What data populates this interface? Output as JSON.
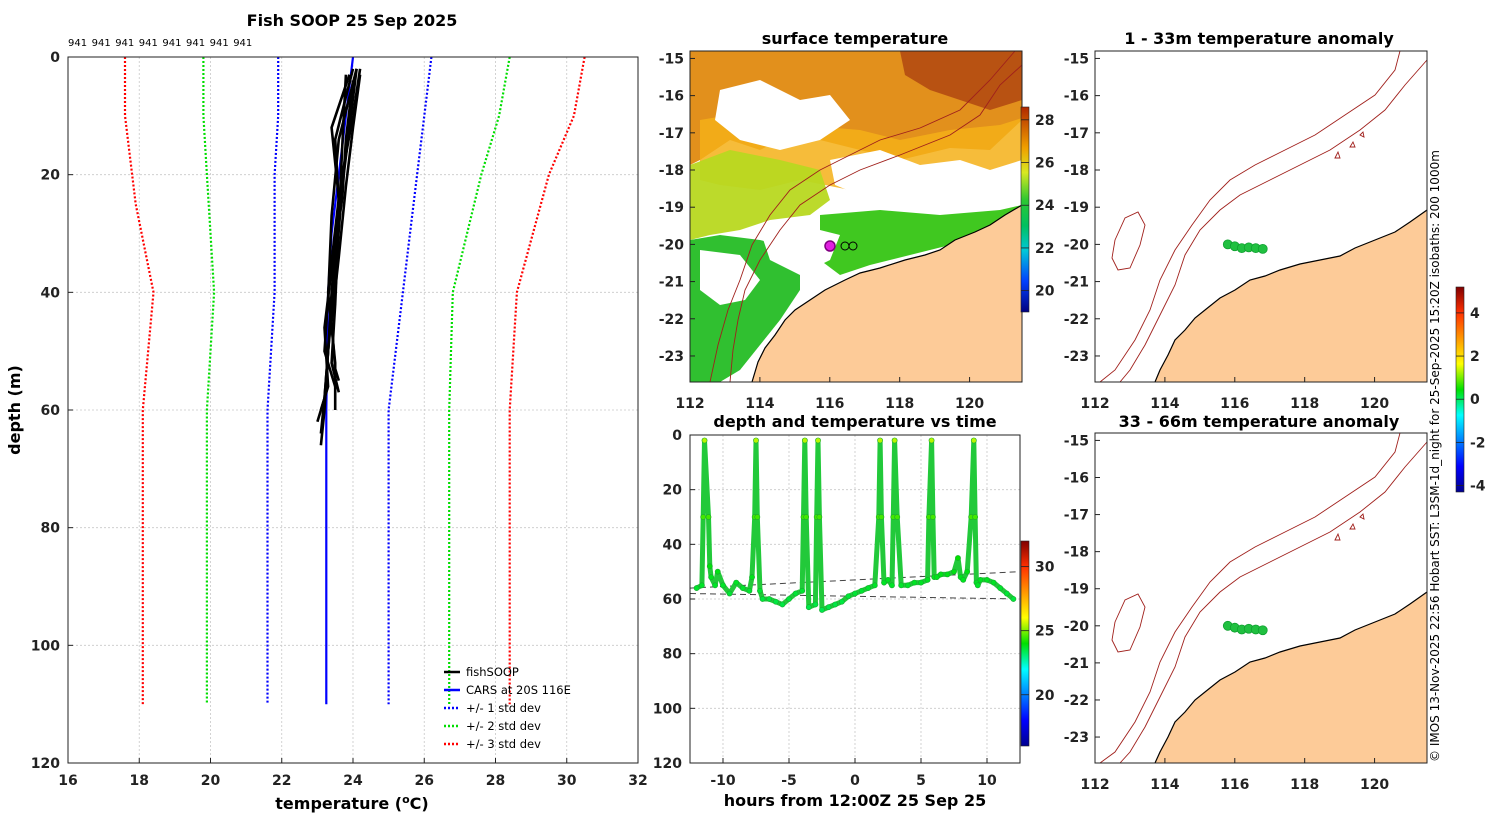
{
  "chart_data": [
    {
      "id": "profile",
      "type": "line",
      "title": "Fish SOOP 25 Sep 2025",
      "station_labels": [
        "941",
        "941",
        "941",
        "941",
        "941",
        "941",
        "941",
        "941"
      ],
      "xlabel": "temperature (",
      "xlabel_sup": "o",
      "xlabel_end": "C)",
      "ylabel": "depth (m)",
      "xlim": [
        16,
        32
      ],
      "ylim": [
        0,
        120
      ],
      "y_inverted": true,
      "xticks": [
        16,
        18,
        20,
        22,
        24,
        26,
        28,
        30,
        32
      ],
      "yticks": [
        0,
        20,
        40,
        60,
        80,
        100,
        120
      ],
      "legend_position": "bottom-right",
      "series": [
        {
          "name": "fishSOOP",
          "color": "#000000",
          "style": "solid",
          "profiles": [
            {
              "x": [
                24.2,
                24.0,
                23.7,
                23.5,
                23.3,
                23.2,
                23.1
              ],
              "y": [
                2,
                10,
                20,
                35,
                50,
                60,
                66
              ]
            },
            {
              "x": [
                24.1,
                23.9,
                23.7,
                23.5,
                23.3,
                23.2,
                23.1
              ],
              "y": [
                2,
                12,
                22,
                37,
                50,
                58,
                64
              ]
            },
            {
              "x": [
                24.0,
                23.5,
                23.6,
                23.4,
                23.3,
                23.2,
                23.0
              ],
              "y": [
                2,
                14,
                25,
                40,
                50,
                58,
                62
              ]
            },
            {
              "x": [
                23.9,
                23.4,
                23.6,
                23.3,
                23.5,
                23.5
              ],
              "y": [
                3,
                12,
                24,
                40,
                52,
                60
              ]
            },
            {
              "x": [
                23.8,
                23.7,
                23.6,
                23.5,
                23.4,
                23.6
              ],
              "y": [
                3,
                15,
                28,
                42,
                52,
                57
              ]
            },
            {
              "x": [
                24.0,
                23.8,
                23.7,
                23.4,
                23.2,
                23.3,
                23.1
              ],
              "y": [
                4,
                14,
                24,
                36,
                46,
                56,
                60
              ]
            },
            {
              "x": [
                24.1,
                23.6,
                23.4,
                23.3,
                23.2,
                23.4,
                23.5
              ],
              "y": [
                2,
                14,
                27,
                41,
                50,
                54,
                56
              ]
            },
            {
              "x": [
                24.2,
                24.0,
                23.8,
                23.6,
                23.4,
                23.5,
                23.6
              ],
              "y": [
                3,
                12,
                22,
                34,
                45,
                53,
                55
              ]
            }
          ]
        },
        {
          "name": "CARS at 20S 116E",
          "color": "#0000ff",
          "style": "solid",
          "x": [
            24.0,
            23.8,
            23.6,
            23.4,
            23.3,
            23.25,
            23.25,
            23.25
          ],
          "y": [
            0,
            10,
            20,
            30,
            40,
            60,
            80,
            110
          ]
        },
        {
          "name": "+/- 1 std dev",
          "color": "#0000ff",
          "style": "dotted",
          "lower": {
            "x": [
              21.9,
              21.9,
              21.8,
              21.8,
              21.6,
              21.6,
              21.6
            ],
            "y": [
              0,
              10,
              20,
              40,
              60,
              80,
              110
            ]
          },
          "upper": {
            "x": [
              26.2,
              26.0,
              25.8,
              25.4,
              25.0,
              25.0,
              25.0
            ],
            "y": [
              0,
              10,
              20,
              40,
              60,
              80,
              110
            ]
          }
        },
        {
          "name": "+/- 2 std dev",
          "color": "#00dd00",
          "style": "dotted",
          "lower": {
            "x": [
              19.8,
              19.8,
              19.9,
              20.1,
              19.9,
              19.9,
              19.9
            ],
            "y": [
              0,
              10,
              20,
              40,
              60,
              80,
              110
            ]
          },
          "upper": {
            "x": [
              28.4,
              28.1,
              27.6,
              26.8,
              26.7,
              26.7,
              26.7
            ],
            "y": [
              0,
              10,
              20,
              40,
              60,
              80,
              110
            ]
          }
        },
        {
          "name": "+/- 3 std dev",
          "color": "#ff0000",
          "style": "dotted",
          "lower": {
            "x": [
              17.6,
              17.6,
              17.9,
              18.4,
              18.1,
              18.1,
              18.1
            ],
            "y": [
              0,
              10,
              25,
              40,
              60,
              80,
              110
            ]
          },
          "upper": {
            "x": [
              30.5,
              30.2,
              29.5,
              28.6,
              28.4,
              28.4,
              28.4
            ],
            "y": [
              0,
              10,
              20,
              40,
              60,
              80,
              110
            ]
          }
        }
      ]
    },
    {
      "id": "sst_map",
      "type": "heatmap",
      "title": "surface temperature",
      "xlim": [
        112,
        121.5
      ],
      "ylim": [
        -23.7,
        -14.8
      ],
      "xticks": [
        112,
        114,
        116,
        118,
        120
      ],
      "yticks": [
        -15,
        -16,
        -17,
        -18,
        -19,
        -20,
        -21,
        -22,
        -23
      ],
      "colorbar": {
        "min": 19,
        "max": 28.6,
        "ticks": [
          20,
          22,
          24,
          26,
          28
        ]
      },
      "cloud_masked": true,
      "vessel_position": {
        "lon": 116.1,
        "lat": -20.05
      }
    },
    {
      "id": "depth_time",
      "type": "scatter",
      "title": "depth and temperature vs time",
      "xlabel": "hours from 12:00Z 25 Sep 25",
      "xlim": [
        -12.5,
        12.5
      ],
      "ylim": [
        0,
        120
      ],
      "y_inverted": true,
      "xticks": [
        -10,
        -5,
        0,
        5,
        10
      ],
      "yticks": [
        0,
        20,
        40,
        60,
        80,
        100,
        120
      ],
      "colorbar": {
        "min": 16,
        "max": 32,
        "ticks": [
          20,
          25,
          30
        ]
      },
      "points": {
        "x": [
          -12,
          -11.6,
          -11.5,
          -11.4,
          -11.1,
          -11.0,
          -10.9,
          -10.6,
          -10.4,
          -10.0,
          -9.5,
          -9.0,
          -8.5,
          -8.0,
          -7.8,
          -7.6,
          -7.5,
          -7.4,
          -7.2,
          -7.0,
          -6.5,
          -6.0,
          -5.5,
          -5.0,
          -4.5,
          -4.0,
          -3.9,
          -3.8,
          -3.7,
          -3.5,
          -3.0,
          -2.9,
          -2.8,
          -2.7,
          -2.5,
          -2.0,
          -1.5,
          -1.0,
          -0.5,
          0.0,
          0.5,
          1.0,
          1.5,
          1.8,
          1.9,
          2.0,
          2.2,
          2.5,
          2.8,
          2.9,
          3.0,
          3.2,
          3.5,
          4.0,
          4.5,
          5.0,
          5.5,
          5.6,
          5.8,
          5.9,
          6.0,
          6.2,
          6.5,
          7.0,
          7.5,
          7.8,
          8.0,
          8.2,
          8.5,
          8.8,
          9.0,
          9.1,
          9.2,
          9.3,
          9.5,
          10.0,
          10.5,
          11.0,
          11.5,
          12.0
        ],
        "y": [
          56,
          55,
          30,
          2,
          30,
          48,
          52,
          55,
          50,
          55,
          58,
          54,
          56,
          57,
          52,
          30,
          2,
          30,
          57,
          60,
          60,
          61,
          62,
          60,
          58,
          57,
          30,
          2,
          30,
          63,
          62,
          30,
          2,
          30,
          64,
          63,
          62,
          61,
          59,
          58,
          57,
          56,
          55,
          30,
          2,
          30,
          54,
          53,
          55,
          30,
          2,
          30,
          55,
          55,
          54,
          54,
          53,
          30,
          2,
          30,
          52,
          52,
          51,
          51,
          50,
          45,
          52,
          53,
          50,
          30,
          2,
          30,
          54,
          55,
          53,
          53,
          54,
          56,
          58,
          60
        ],
        "climatology_lines": [
          {
            "x": [
              -12.5,
              12.5
            ],
            "y": [
              56,
              50
            ]
          },
          {
            "x": [
              -12.5,
              12.5
            ],
            "y": [
              58,
              60
            ]
          }
        ]
      }
    },
    {
      "id": "anom_map_1",
      "type": "heatmap",
      "title": "1 - 33m temperature anomaly",
      "xlim": [
        112,
        121.5
      ],
      "ylim": [
        -23.7,
        -14.8
      ],
      "xticks": [
        112,
        114,
        116,
        118,
        120
      ],
      "yticks": [
        -15,
        -16,
        -17,
        -18,
        -19,
        -20,
        -21,
        -22,
        -23
      ],
      "track": {
        "lon": [
          115.8,
          116.0,
          116.2,
          116.4,
          116.6,
          116.8
        ],
        "lat": [
          -20.0,
          -20.05,
          -20.1,
          -20.08,
          -20.1,
          -20.12
        ]
      }
    },
    {
      "id": "anom_map_2",
      "type": "heatmap",
      "title": "33 - 66m temperature anomaly",
      "xlim": [
        112,
        121.5
      ],
      "ylim": [
        -23.7,
        -14.8
      ],
      "xticks": [
        112,
        114,
        116,
        118,
        120
      ],
      "yticks": [
        -15,
        -16,
        -17,
        -18,
        -19,
        -20,
        -21,
        -22,
        -23
      ],
      "track": {
        "lon": [
          115.8,
          116.0,
          116.2,
          116.4,
          116.6,
          116.8
        ],
        "lat": [
          -20.0,
          -20.05,
          -20.1,
          -20.08,
          -20.1,
          -20.12
        ]
      }
    },
    {
      "id": "anom_colorbar",
      "type": "heatmap",
      "colorbar": {
        "min": -4.3,
        "max": 5.2,
        "ticks": [
          4,
          2,
          0,
          -2,
          -4
        ]
      }
    }
  ],
  "credit": "© IMOS 13-Nov-2025 22:56 Hobart SST: L3SM-1d_night for 25-Sep-2025 15:20Z isobaths: 200  1000m"
}
